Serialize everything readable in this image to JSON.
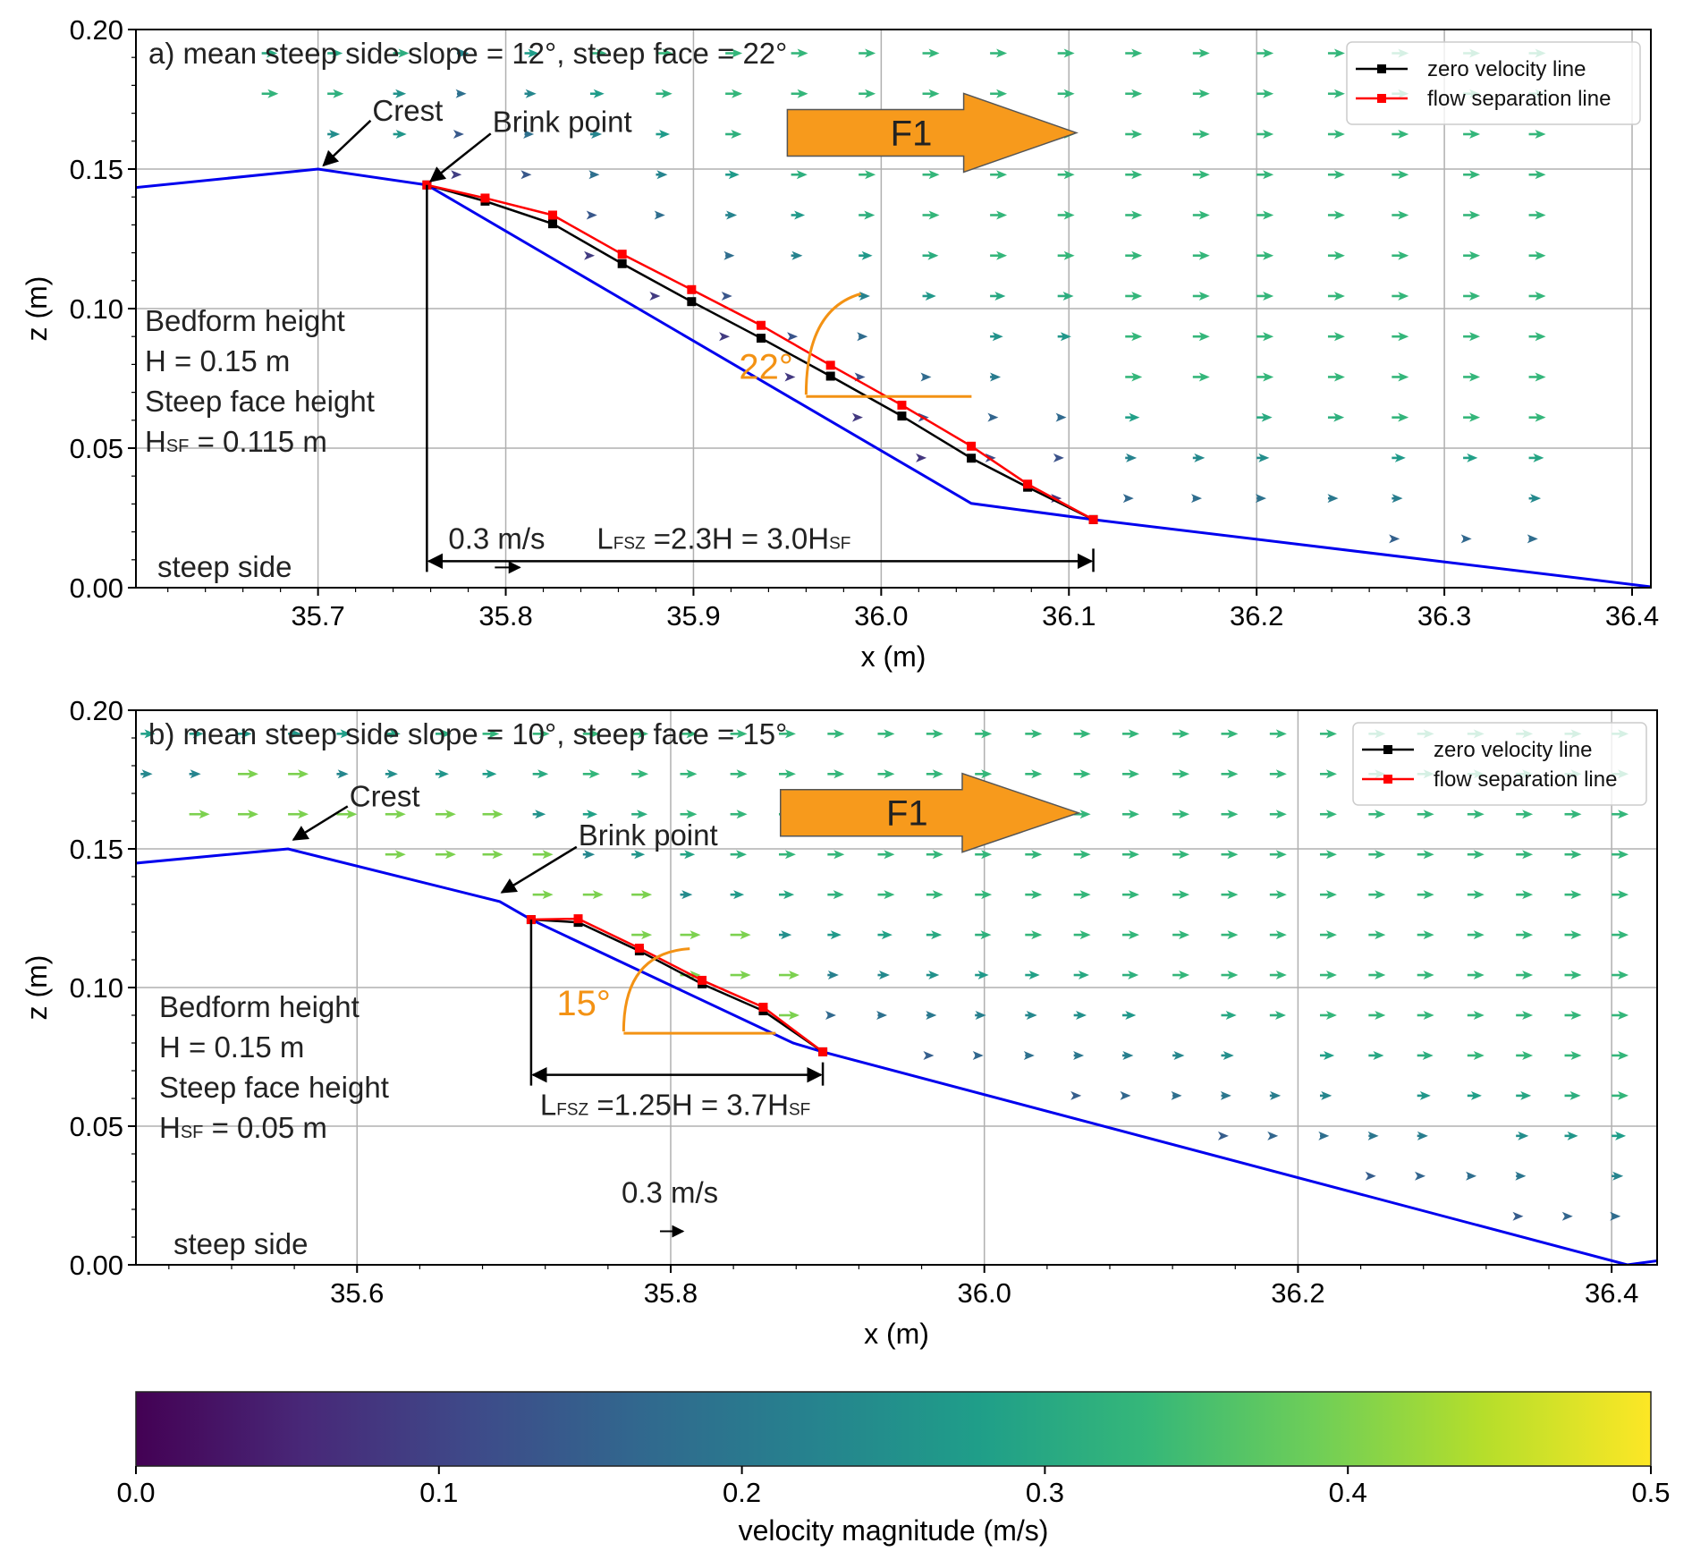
{
  "chart_data": [
    {
      "type": "quiver",
      "panel": "a",
      "title": "a) mean steep side slope = 12°, steep face = 22°",
      "xlabel": "x (m)",
      "ylabel": "z (m)",
      "xlim": [
        35.603,
        36.41
      ],
      "ylim": [
        0.0,
        0.2
      ],
      "xticks": [
        35.7,
        35.8,
        35.9,
        36.0,
        36.1,
        36.2,
        36.3,
        36.4
      ],
      "xtick_labels": [
        "35.7",
        "35.8",
        "35.9",
        "36.0",
        "36.1",
        "36.2",
        "36.3",
        "36.4"
      ],
      "yticks": [
        0.0,
        0.05,
        0.1,
        0.15,
        0.2
      ],
      "ytick_labels": [
        "0.00",
        "0.05",
        "0.10",
        "0.15",
        "0.20"
      ],
      "grid": true,
      "legend": {
        "placement": "top-right",
        "entries": [
          {
            "label": "zero velocity line",
            "color": "#000000"
          },
          {
            "label": "flow separation line",
            "color": "#ff0000"
          }
        ]
      },
      "bed_profile": {
        "color": "#0000ee",
        "x": [
          35.599,
          35.7,
          35.758,
          36.048,
          36.113,
          36.414
        ],
        "z": [
          0.1431,
          0.15,
          0.1443,
          0.0302,
          0.0244,
          0.0
        ]
      },
      "series": [
        {
          "name": "zero velocity line",
          "color": "#000000",
          "x": [
            35.758,
            35.789,
            35.825,
            35.862,
            35.899,
            35.936,
            35.973,
            36.011,
            36.048,
            36.078,
            36.113
          ],
          "z": [
            0.1443,
            0.1385,
            0.1304,
            0.1161,
            0.1025,
            0.0894,
            0.0758,
            0.0615,
            0.0464,
            0.036,
            0.0244
          ]
        },
        {
          "name": "flow separation line",
          "color": "#ff0000",
          "x": [
            35.758,
            35.789,
            35.825,
            35.862,
            35.899,
            35.936,
            35.973,
            36.011,
            36.048,
            36.078,
            36.113
          ],
          "z": [
            0.1443,
            0.1396,
            0.1335,
            0.1195,
            0.1068,
            0.094,
            0.0797,
            0.0654,
            0.0507,
            0.0371,
            0.0244
          ]
        }
      ],
      "annotations": {
        "crest_label": "Crest",
        "crest_point": [
          35.7,
          0.15
        ],
        "crest_text_pos": [
          35.728,
          0.168
        ],
        "brink_label": "Brink point",
        "brink_point": [
          35.758,
          0.1443
        ],
        "brink_text_pos": [
          35.792,
          0.164
        ],
        "bedform_lines": [
          "Bedform height",
          "H = 0.15 m",
          "Steep face height"
        ],
        "hsf_main": "H",
        "hsf_sub": "SF",
        "hsf_value": " = 0.115 m",
        "steep_side": "steep side",
        "angle_label": "22°",
        "angle_vertex": [
          35.96,
          0.0685
        ],
        "angle_deg": 22,
        "lfsz_main": "L",
        "lfsz_sub": "FSZ",
        "lfsz_value": " =2.3H = 3.0H",
        "lfsz_sub2": "SF",
        "lfsz_span": [
          35.758,
          36.113
        ],
        "lfsz_z": 0.0095,
        "scale_key_label": "0.3 m/s",
        "scale_key_x": 35.798,
        "scale_key_z": 0.0095,
        "flow_label": "F1",
        "flow_arrow_x": [
          35.95,
          36.104
        ],
        "flow_arrow_z": 0.163
      },
      "quiver_field": {
        "description": "velocity vectors colored by magnitude (m/s)",
        "columns_x": [
          35.67,
          35.705,
          35.74,
          35.774,
          35.81,
          35.845,
          35.88,
          35.917,
          35.952,
          35.988,
          36.022,
          36.058,
          36.094,
          36.13,
          36.166,
          36.2,
          36.238,
          36.272,
          36.31,
          36.345
        ],
        "upper_speed": 0.33,
        "near_bed_speed": 0.16
      }
    },
    {
      "type": "quiver",
      "panel": "b",
      "title": "b) mean steep side slope = 10°, steep face = 15°",
      "xlabel": "x (m)",
      "ylabel": "z (m)",
      "xlim": [
        35.459,
        36.429
      ],
      "ylim": [
        0.0,
        0.2
      ],
      "xticks": [
        35.6,
        35.8,
        36.0,
        36.2,
        36.4
      ],
      "xtick_labels": [
        "35.6",
        "35.8",
        "36.0",
        "36.2",
        "36.4"
      ],
      "yticks": [
        0.0,
        0.05,
        0.1,
        0.15,
        0.2
      ],
      "ytick_labels": [
        "0.00",
        "0.05",
        "0.10",
        "0.15",
        "0.20"
      ],
      "grid": true,
      "legend": {
        "placement": "top-right",
        "entries": [
          {
            "label": "zero velocity line",
            "color": "#000000"
          },
          {
            "label": "flow separation line",
            "color": "#ff0000"
          }
        ]
      },
      "bed_profile": {
        "color": "#0000ee",
        "x": [
          35.456,
          35.556,
          35.691,
          35.711,
          35.878,
          35.897,
          36.41,
          36.431
        ],
        "z": [
          0.1447,
          0.15,
          0.131,
          0.1245,
          0.08,
          0.0768,
          0.0,
          0.0016
        ]
      },
      "series": [
        {
          "name": "zero velocity line",
          "color": "#000000",
          "x": [
            35.711,
            35.741,
            35.78,
            35.82,
            35.859,
            35.897
          ],
          "z": [
            0.1245,
            0.1235,
            0.1132,
            0.1013,
            0.0916,
            0.0768
          ]
        },
        {
          "name": "flow separation line",
          "color": "#ff0000",
          "x": [
            35.711,
            35.741,
            35.78,
            35.82,
            35.859,
            35.897
          ],
          "z": [
            0.1245,
            0.1248,
            0.1142,
            0.1026,
            0.0929,
            0.0768
          ]
        }
      ],
      "annotations": {
        "crest_label": "Crest",
        "crest_point": [
          35.556,
          0.152
        ],
        "crest_text_pos": [
          35.594,
          0.166
        ],
        "brink_label": "Brink point",
        "brink_point": [
          35.69,
          0.133
        ],
        "brink_text_pos": [
          35.74,
          0.152
        ],
        "bedform_lines": [
          "Bedform height",
          "H = 0.15 m",
          "Steep face height"
        ],
        "hsf_main": "H",
        "hsf_sub": "SF",
        "hsf_value": " = 0.05 m",
        "steep_side": "steep side",
        "angle_label": "15°",
        "angle_vertex": [
          35.77,
          0.0835
        ],
        "angle_deg": 15,
        "lfsz_main": "L",
        "lfsz_sub": "FSZ",
        "lfsz_value": " =1.25H = 3.7H",
        "lfsz_sub2": "SF",
        "lfsz_span": [
          35.711,
          35.897
        ],
        "lfsz_z": 0.0685,
        "scale_key_label": "0.3 m/s",
        "scale_key_x": 35.8,
        "scale_key_z": 0.0095,
        "flow_label": "F1",
        "flow_arrow_x": [
          35.87,
          36.06
        ],
        "flow_arrow_z": 0.163
      },
      "quiver_field": {
        "description": "velocity vectors colored by magnitude (m/s)",
        "columns_x": [
          35.462,
          35.493,
          35.524,
          35.556,
          35.587,
          35.618,
          35.65,
          35.68,
          35.712,
          35.744,
          35.775,
          35.806,
          35.838,
          35.869,
          35.9,
          35.932,
          35.963,
          35.994,
          36.026,
          36.057,
          36.088,
          36.12,
          36.151,
          36.182,
          36.214,
          36.245,
          36.276,
          36.308,
          36.339,
          36.37,
          36.4
        ],
        "upper_speed": 0.33,
        "near_bed_speed": 0.4
      }
    },
    {
      "type": "colorbar",
      "label": "velocity magnitude (m/s)",
      "range": [
        0.0,
        0.5
      ],
      "ticks": [
        0.0,
        0.1,
        0.2,
        0.3,
        0.4,
        0.5
      ],
      "tick_labels": [
        "0.0",
        "0.1",
        "0.2",
        "0.3",
        "0.4",
        "0.5"
      ],
      "colormap": "viridis",
      "colormap_stops": [
        "#440154",
        "#482878",
        "#3e4a89",
        "#31688e",
        "#26828e",
        "#1f9e89",
        "#35b779",
        "#6ece58",
        "#b5de2b",
        "#fde725"
      ]
    }
  ],
  "colors": {
    "bed": "#0000ee",
    "zero_velocity": "#000000",
    "flow_separation": "#ff0000",
    "angle": "#f39214",
    "flow_arrow_fill": "#f79a1c",
    "grid": "#b0b0b0"
  }
}
